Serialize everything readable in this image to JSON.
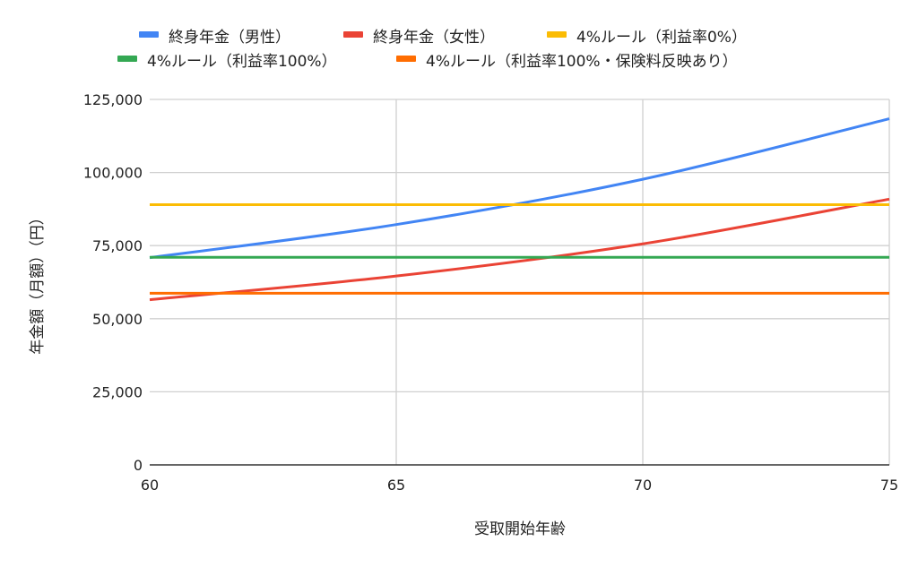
{
  "chart_data": {
    "type": "line",
    "title": "",
    "xlabel": "受取開始年齢",
    "ylabel": "年金額（月額）（円）",
    "xlim": [
      60,
      75
    ],
    "ylim": [
      0,
      125000
    ],
    "xticks": [
      "60",
      "65",
      "70",
      "75"
    ],
    "yticks": [
      "0",
      "25,000",
      "50,000",
      "75,000",
      "100,000",
      "125,000"
    ],
    "grid": true,
    "legend_position": "top",
    "x": [
      60,
      65,
      70,
      75
    ],
    "series": [
      {
        "name": "終身年金（男性）",
        "color": "#4285f4",
        "values": [
          70900,
          82200,
          97700,
          118400
        ]
      },
      {
        "name": "終身年金（女性）",
        "color": "#ea4335",
        "values": [
          56500,
          64600,
          75600,
          90900
        ]
      },
      {
        "name": "4%ルール（利益率0%）",
        "color": "#fbbc04",
        "values": [
          89000,
          89000,
          89000,
          89000
        ]
      },
      {
        "name": "4%ルール（利益率100%）",
        "color": "#34a853",
        "values": [
          71000,
          71000,
          71000,
          71000
        ]
      },
      {
        "name": "4%ルール（利益率100%・保険料反映あり）",
        "color": "#ff6d01",
        "values": [
          58700,
          58700,
          58700,
          58700
        ]
      }
    ]
  }
}
